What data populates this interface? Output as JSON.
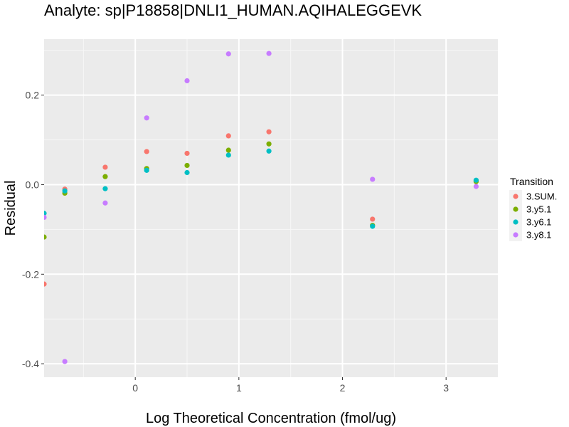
{
  "chart_data": {
    "type": "scatter",
    "title": "Analyte: sp|P18858|DNLI1_HUMAN.AQIHALEGGEVK",
    "xlabel": "Log Theoretical Concentration (fmol/ug)",
    "ylabel": "Residual",
    "xlim": [
      -0.88,
      3.5
    ],
    "ylim": [
      -0.43,
      0.325
    ],
    "xticks": [
      0,
      1,
      2,
      3
    ],
    "xtick_labels": [
      "0",
      "1",
      "2",
      "3"
    ],
    "yticks": [
      -0.4,
      -0.2,
      0.0,
      0.2
    ],
    "ytick_labels": [
      "-0.4",
      "-0.2",
      "0.0",
      "0.2"
    ],
    "grid": true,
    "background": "#ebebeb",
    "legend": {
      "title": "Transition",
      "placement": "right"
    },
    "series": [
      {
        "name": "3.SUM.",
        "color": "#F8766D",
        "points": [
          [
            -0.88,
            -0.222
          ],
          [
            -0.68,
            -0.01
          ],
          [
            -0.29,
            0.039
          ],
          [
            0.11,
            0.074
          ],
          [
            0.5,
            0.07
          ],
          [
            0.9,
            0.109
          ],
          [
            1.29,
            0.118
          ],
          [
            2.29,
            -0.077
          ],
          [
            3.29,
            0.008
          ]
        ]
      },
      {
        "name": "3.y5.1",
        "color": "#7CAE00",
        "points": [
          [
            -0.88,
            -0.117
          ],
          [
            -0.68,
            -0.019
          ],
          [
            -0.29,
            0.018
          ],
          [
            0.11,
            0.036
          ],
          [
            0.5,
            0.043
          ],
          [
            0.9,
            0.077
          ],
          [
            1.29,
            0.091
          ],
          [
            2.29,
            -0.091
          ],
          [
            3.29,
            0.007
          ]
        ]
      },
      {
        "name": "3.y6.1",
        "color": "#00BFC4",
        "points": [
          [
            -0.88,
            -0.064
          ],
          [
            -0.68,
            -0.014
          ],
          [
            -0.29,
            -0.009
          ],
          [
            0.11,
            0.032
          ],
          [
            0.5,
            0.027
          ],
          [
            0.9,
            0.066
          ],
          [
            1.29,
            0.075
          ],
          [
            2.29,
            -0.093
          ],
          [
            3.29,
            0.01
          ]
        ]
      },
      {
        "name": "3.y8.1",
        "color": "#C77CFF",
        "points": [
          [
            -0.88,
            -0.073
          ],
          [
            -0.68,
            -0.395
          ],
          [
            -0.29,
            -0.041
          ],
          [
            0.11,
            0.149
          ],
          [
            0.5,
            0.232
          ],
          [
            0.9,
            0.292
          ],
          [
            1.29,
            0.293
          ],
          [
            2.29,
            0.012
          ],
          [
            3.29,
            -0.004
          ]
        ]
      }
    ]
  }
}
